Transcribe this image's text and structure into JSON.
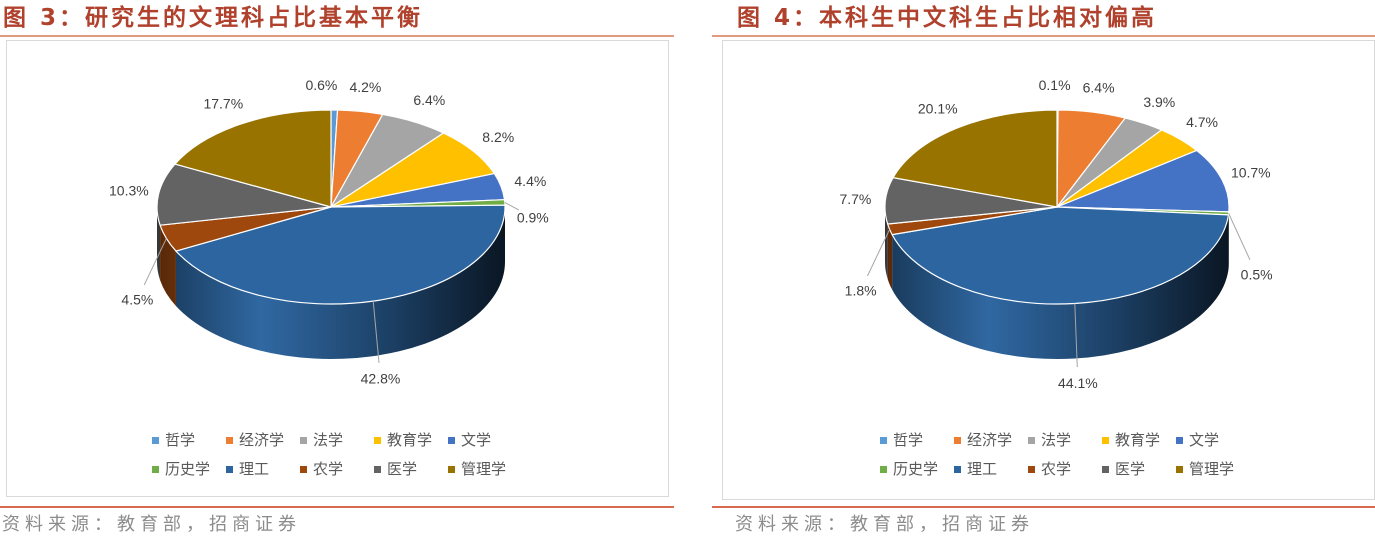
{
  "theme": {
    "title_color": "#b0412c",
    "title_rule_color": "#e39a83",
    "source_rule_color": "#d9694f",
    "source_color": "#8c8c8c"
  },
  "panels": [
    {
      "source": "资料来源：教育部，招商证券"
    },
    {
      "source": "资料来源：教育部，招商证券"
    }
  ],
  "chart_data": [
    {
      "type": "pie",
      "style": "3d",
      "title": "图 3：研究生的文理科占比基本平衡",
      "categories": [
        "哲学",
        "经济学",
        "法学",
        "教育学",
        "文学",
        "历史学",
        "理工",
        "农学",
        "医学",
        "管理学"
      ],
      "values": [
        0.6,
        4.2,
        6.4,
        8.2,
        4.4,
        0.9,
        42.8,
        4.5,
        10.3,
        17.7
      ],
      "unit": "%",
      "colors": [
        "#5b9bd5",
        "#ed7d31",
        "#a5a5a5",
        "#ffc000",
        "#4472c4",
        "#70ad47",
        "#2c65a0",
        "#9e480e",
        "#636363",
        "#997300"
      ],
      "data_labels": "outside",
      "legend_position": "bottom"
    },
    {
      "type": "pie",
      "style": "3d",
      "title": "图 4：本科生中文科生占比相对偏高",
      "categories": [
        "哲学",
        "经济学",
        "法学",
        "教育学",
        "文学",
        "历史学",
        "理工",
        "农学",
        "医学",
        "管理学"
      ],
      "values": [
        0.1,
        6.4,
        3.9,
        4.7,
        10.7,
        0.5,
        44.1,
        1.8,
        7.7,
        20.1
      ],
      "unit": "%",
      "colors": [
        "#5b9bd5",
        "#ed7d31",
        "#a5a5a5",
        "#ffc000",
        "#4472c4",
        "#70ad47",
        "#2c65a0",
        "#9e480e",
        "#636363",
        "#997300"
      ],
      "data_labels": "outside",
      "legend_position": "bottom"
    }
  ]
}
